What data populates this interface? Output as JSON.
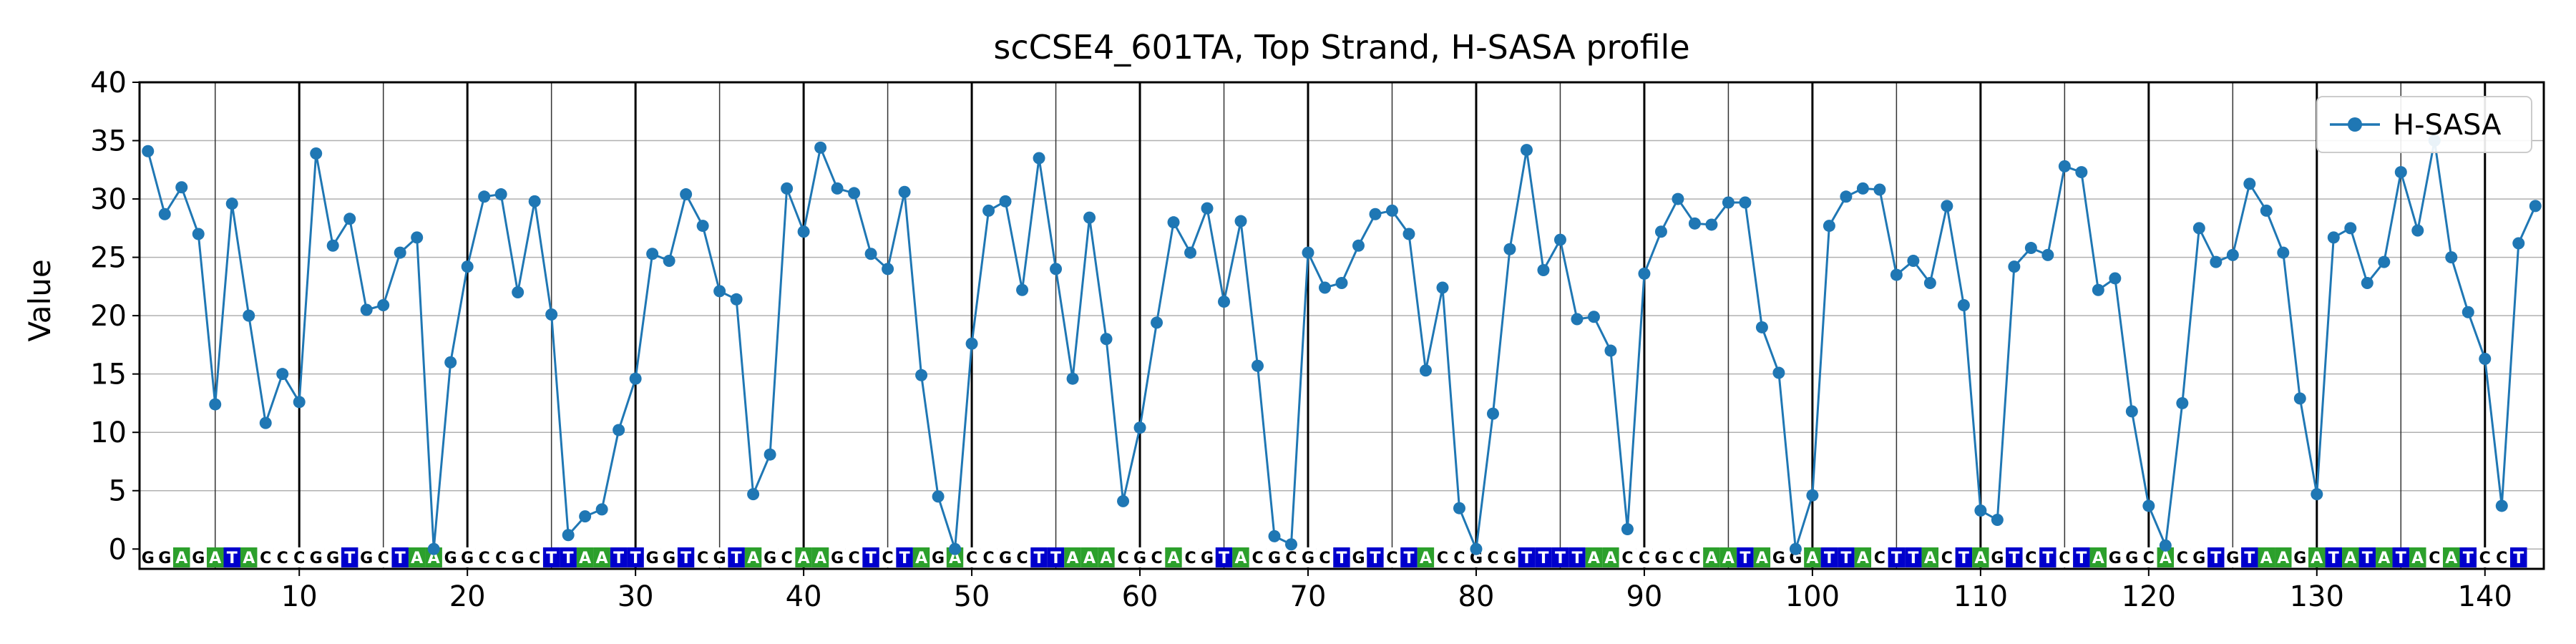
{
  "chart_data": {
    "type": "line",
    "title": "scCSE4_601TA, Top Strand, H-SASA profile",
    "xlabel": "",
    "ylabel": "Value",
    "xlim": [
      0.5,
      143.5
    ],
    "ylim": [
      -1.7,
      40
    ],
    "x_ticks": [
      10,
      20,
      30,
      40,
      50,
      60,
      70,
      80,
      90,
      100,
      110,
      120,
      130,
      140
    ],
    "y_ticks": [
      0,
      5,
      10,
      15,
      20,
      25,
      30,
      35,
      40
    ],
    "grid": true,
    "legend": {
      "position": "top-right",
      "entries": [
        "H-SASA"
      ]
    },
    "vlines_major": [
      10,
      20,
      30,
      40,
      50,
      60,
      70,
      80,
      90,
      100,
      110,
      120,
      130,
      140
    ],
    "vlines_minor": [
      5,
      15,
      25,
      35,
      45,
      55,
      65,
      75,
      85,
      95,
      105,
      115,
      125,
      135
    ],
    "sequence": "GGAGATACCCGGTGCTAAGGCCGCTTAATTGGTCGTAGCAAGCTCTAGACCGCTTAAACGCACGTACGCGCTGTCTACCGCGTTTTAACCGCCAATAGGATTACTTACTAGTCTCTAGGCACGTGTAAGATATATACATCCT",
    "base_colors": {
      "A": "#2ca02c",
      "T": "#0000cc",
      "G": "#ffffff",
      "C": "#ffffff"
    },
    "base_text_colors": {
      "A": "#ffffff",
      "T": "#ffffff",
      "G": "#000000",
      "C": "#000000"
    },
    "series": [
      {
        "name": "H-SASA",
        "color": "#1f77b4",
        "x": [
          1,
          2,
          3,
          4,
          5,
          6,
          7,
          8,
          9,
          10,
          11,
          12,
          13,
          14,
          15,
          16,
          17,
          18,
          19,
          20,
          21,
          22,
          23,
          24,
          25,
          26,
          27,
          28,
          29,
          30,
          31,
          32,
          33,
          34,
          35,
          36,
          37,
          38,
          39,
          40,
          41,
          42,
          43,
          44,
          45,
          46,
          47,
          48,
          49,
          50,
          51,
          52,
          53,
          54,
          55,
          56,
          57,
          58,
          59,
          60,
          61,
          62,
          63,
          64,
          65,
          66,
          67,
          68,
          69,
          70,
          71,
          72,
          73,
          74,
          75,
          76,
          77,
          78,
          79,
          80,
          81,
          82,
          83,
          84,
          85,
          86,
          87,
          88,
          89,
          90,
          91,
          92,
          93,
          94,
          95,
          96,
          97,
          98,
          99,
          100,
          101,
          102,
          103,
          104,
          105,
          106,
          107,
          108,
          109,
          110,
          111,
          112,
          113,
          114,
          115,
          116,
          117,
          118,
          119,
          120,
          121,
          122,
          123,
          124,
          125,
          126,
          127,
          128,
          129,
          130,
          131,
          132,
          133,
          134,
          135,
          136,
          137,
          138,
          139,
          140,
          141,
          142,
          143
        ],
        "values": [
          34.1,
          28.7,
          31.0,
          27.0,
          12.4,
          29.6,
          20.0,
          10.8,
          15.0,
          12.6,
          33.9,
          26.0,
          28.3,
          20.5,
          20.9,
          25.4,
          26.7,
          0.0,
          16.0,
          24.2,
          30.2,
          30.4,
          22.0,
          29.8,
          20.1,
          1.2,
          2.8,
          3.4,
          10.2,
          14.6,
          25.3,
          24.7,
          30.4,
          27.7,
          22.1,
          21.4,
          4.7,
          8.1,
          30.9,
          27.2,
          34.4,
          30.9,
          30.5,
          25.3,
          24.0,
          30.6,
          14.9,
          4.5,
          0.0,
          17.6,
          29.0,
          29.8,
          22.2,
          33.5,
          24.0,
          14.6,
          28.4,
          18.0,
          4.1,
          10.4,
          19.4,
          28.0,
          25.4,
          29.2,
          21.2,
          28.1,
          15.7,
          1.1,
          0.4,
          25.4,
          22.4,
          22.8,
          26.0,
          28.7,
          29.0,
          27.0,
          15.3,
          22.4,
          3.5,
          0.0,
          11.6,
          25.7,
          34.2,
          23.9,
          26.5,
          19.7,
          19.9,
          17.0,
          1.7,
          23.6,
          27.2,
          30.0,
          27.9,
          27.8,
          29.7,
          29.7,
          19.0,
          15.1,
          0.0,
          4.6,
          27.7,
          30.2,
          30.9,
          30.8,
          23.5,
          24.7,
          22.8,
          29.4,
          20.9,
          3.3,
          2.5,
          24.2,
          25.8,
          25.2,
          32.8,
          32.3,
          22.2,
          23.2,
          11.8,
          3.7,
          0.3,
          12.5,
          27.5,
          24.6,
          25.2,
          31.3,
          29.0,
          25.4,
          12.9,
          4.7,
          26.7,
          27.5,
          22.8,
          24.6,
          32.3,
          27.3,
          35.0,
          25.0,
          20.3,
          16.3,
          3.7,
          26.2,
          29.4
        ]
      }
    ]
  }
}
